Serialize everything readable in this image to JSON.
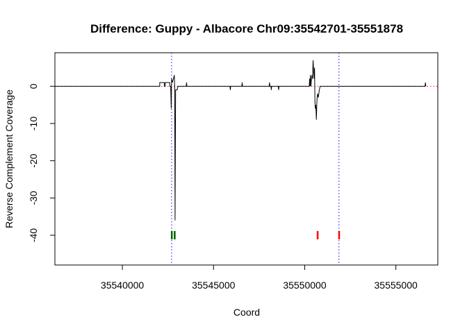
{
  "chart_data": {
    "type": "line",
    "title": "Difference: Guppy - Albacore  Chr09:35542701-35551878",
    "xlabel": "Coord",
    "ylabel": "Reverse Complement Coverage",
    "xlim": [
      35536300,
      35557300
    ],
    "ylim": [
      -48,
      9
    ],
    "xticks": [
      35540000,
      35545000,
      35550000,
      35555000
    ],
    "xtick_labels": [
      "35540000",
      "35545000",
      "35550000",
      "35555000"
    ],
    "yticks": [
      0,
      -10,
      -20,
      -30,
      -40
    ],
    "ytick_labels": [
      "0",
      "-10",
      "-20",
      "-30",
      "-40"
    ],
    "hline": {
      "y": 0,
      "color": "#ff0000",
      "style": "dotted"
    },
    "vlines": [
      {
        "x": 35542701,
        "color": "#0000ff",
        "style": "dotted"
      },
      {
        "x": 35551878,
        "color": "#0000ff",
        "style": "dotted"
      }
    ],
    "series": [
      {
        "name": "difference",
        "color": "#000000",
        "points": [
          [
            35536300,
            0
          ],
          [
            35542050,
            0
          ],
          [
            35542050,
            1
          ],
          [
            35542300,
            1
          ],
          [
            35542300,
            0
          ],
          [
            35542350,
            0
          ],
          [
            35542350,
            1
          ],
          [
            35542600,
            1
          ],
          [
            35542600,
            0
          ],
          [
            35542650,
            0
          ],
          [
            35542680,
            -6
          ],
          [
            35542700,
            2
          ],
          [
            35542740,
            1
          ],
          [
            35542800,
            2
          ],
          [
            35542850,
            3
          ],
          [
            35542870,
            0
          ],
          [
            35542890,
            -36
          ],
          [
            35542920,
            -1
          ],
          [
            35543000,
            -1
          ],
          [
            35543050,
            0
          ],
          [
            35543500,
            0
          ],
          [
            35543520,
            1
          ],
          [
            35543540,
            0
          ],
          [
            35545900,
            0
          ],
          [
            35545920,
            -1
          ],
          [
            35545940,
            0
          ],
          [
            35546550,
            0
          ],
          [
            35546570,
            1
          ],
          [
            35546590,
            0
          ],
          [
            35548050,
            0
          ],
          [
            35548070,
            1
          ],
          [
            35548090,
            0
          ],
          [
            35548150,
            0
          ],
          [
            35548170,
            -1
          ],
          [
            35548190,
            0
          ],
          [
            35548550,
            0
          ],
          [
            35548570,
            -1
          ],
          [
            35548590,
            0
          ],
          [
            35550250,
            0
          ],
          [
            35550270,
            2
          ],
          [
            35550290,
            0
          ],
          [
            35550310,
            3
          ],
          [
            35550340,
            0
          ],
          [
            35550370,
            2
          ],
          [
            35550400,
            3
          ],
          [
            35550430,
            2
          ],
          [
            35550460,
            7
          ],
          [
            35550490,
            4
          ],
          [
            35550520,
            2
          ],
          [
            35550540,
            5
          ],
          [
            35550560,
            -4
          ],
          [
            35550580,
            -6
          ],
          [
            35550610,
            -5
          ],
          [
            35550640,
            -9
          ],
          [
            35550670,
            -4
          ],
          [
            35550700,
            -2
          ],
          [
            35550750,
            -3
          ],
          [
            35550800,
            -1
          ],
          [
            35550850,
            0
          ],
          [
            35556600,
            0
          ],
          [
            35556620,
            1
          ],
          [
            35556640,
            0
          ]
        ]
      }
    ],
    "markers": [
      {
        "x": 35542701,
        "y": -40,
        "color": "#006400"
      },
      {
        "x": 35542860,
        "y": -40,
        "color": "#006400"
      },
      {
        "x": 35550700,
        "y": -40,
        "color": "#ff0000"
      },
      {
        "x": 35551878,
        "y": -40,
        "color": "#ff0000"
      }
    ]
  }
}
